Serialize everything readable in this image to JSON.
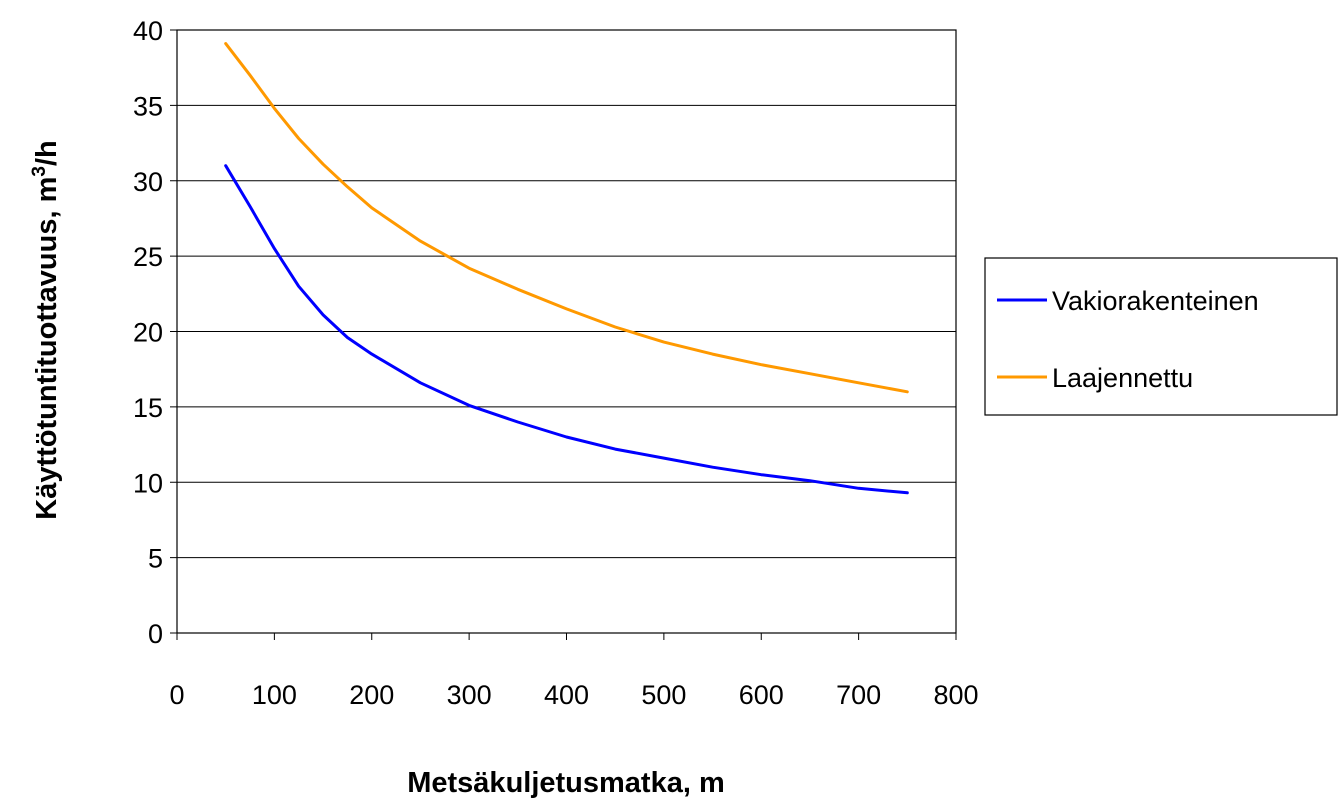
{
  "chart_data": {
    "type": "line",
    "title": "",
    "xlabel": "Metsäkuljetusmatka, m",
    "ylabel": {
      "main": "Käyttötuntituottavuus, m",
      "superscript": "3",
      "suffix": "/h"
    },
    "xlim": [
      0,
      800
    ],
    "ylim": [
      0,
      40
    ],
    "xticks": [
      0,
      100,
      200,
      300,
      400,
      500,
      600,
      700,
      800
    ],
    "yticks": [
      0,
      5,
      10,
      15,
      20,
      25,
      30,
      35,
      40
    ],
    "grid": {
      "horizontal": true,
      "vertical": false
    },
    "legend_position": "right",
    "x": [
      50,
      75,
      100,
      125,
      150,
      175,
      200,
      250,
      300,
      350,
      400,
      450,
      500,
      550,
      600,
      650,
      700,
      750
    ],
    "series": [
      {
        "name": "Vakiorakenteinen",
        "color": "#0000FF",
        "values": [
          31.0,
          28.3,
          25.5,
          23.0,
          21.1,
          19.6,
          18.5,
          16.6,
          15.1,
          14.0,
          13.0,
          12.2,
          11.6,
          11.0,
          10.5,
          10.1,
          9.6,
          9.3
        ]
      },
      {
        "name": "Laajennettu",
        "color": "#FF9900",
        "values": [
          39.1,
          37.0,
          34.8,
          32.8,
          31.1,
          29.6,
          28.2,
          26.0,
          24.2,
          22.8,
          21.5,
          20.3,
          19.3,
          18.5,
          17.8,
          17.2,
          16.6,
          16.0
        ]
      }
    ]
  }
}
